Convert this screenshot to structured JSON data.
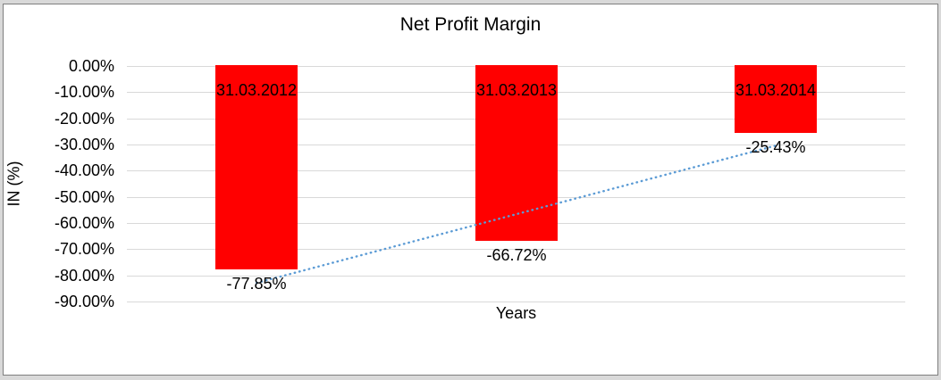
{
  "chart_data": {
    "type": "bar",
    "title": "Net Profit Margin",
    "categories": [
      "31.03.2012",
      "31.03.2013",
      "31.03.2014"
    ],
    "values": [
      -77.85,
      -66.72,
      -25.43
    ],
    "data_labels": [
      "-77.85%",
      "-66.72%",
      "-25.43%"
    ],
    "xlabel": "Years",
    "ylabel": "IN (%)",
    "ylim": [
      -90,
      0
    ],
    "ytick_values": [
      0,
      -10,
      -20,
      -30,
      -40,
      -50,
      -60,
      -70,
      -80,
      -90
    ],
    "ytick_labels": [
      "0.00%",
      "-10.00%",
      "-20.00%",
      "-30.00%",
      "-40.00%",
      "-50.00%",
      "-60.00%",
      "-70.00%",
      "-80.00%",
      "-90.00%"
    ],
    "grid": true,
    "legend": "none",
    "bar_color": "#ff0000",
    "gridline_color": "#d9d9d9",
    "frame_border_color": "#7f7f7f",
    "trendline": {
      "type": "linear",
      "line_style": "dotted",
      "color": "#5b9bd5"
    }
  }
}
